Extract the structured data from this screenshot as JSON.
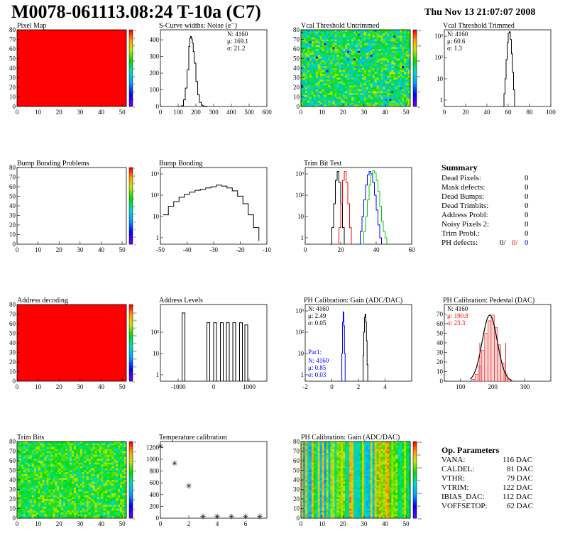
{
  "header": {
    "title": "M0078-061113.08:24 T-10a (C7)",
    "date": "Thu Nov 13 21:07:07 2008"
  },
  "colors": {
    "red": "#ff0000",
    "blue": "#0000ff",
    "green": "#00cc00",
    "black": "#000000"
  },
  "summary": {
    "heading": "Summary",
    "rows": [
      {
        "label": "Dead Pixels:",
        "value": "0"
      },
      {
        "label": "Mask defects:",
        "value": "0"
      },
      {
        "label": "Dead Bumps:",
        "value": "0"
      },
      {
        "label": "Dead Trimbits:",
        "value": "0"
      },
      {
        "label": "Address Probl:",
        "value": "0"
      },
      {
        "label": "Noisy Pixels 2:",
        "value": "0"
      },
      {
        "label": "Trim Probl.:",
        "value": "0"
      }
    ],
    "ph_label": "PH defects:",
    "ph_values": [
      "0/",
      "0/",
      "0"
    ]
  },
  "op_params": {
    "heading": "Op. Parameters",
    "rows": [
      {
        "label": "VANA:",
        "value": "116 DAC"
      },
      {
        "label": "CALDEL:",
        "value": "81 DAC"
      },
      {
        "label": "VTHR:",
        "value": "79 DAC"
      },
      {
        "label": "VTRIM:",
        "value": "122 DAC"
      },
      {
        "label": "IBIAS_DAC:",
        "value": "112 DAC"
      },
      {
        "label": "VOFFSETOP:",
        "value": "62 DAC"
      }
    ]
  },
  "chart_data": [
    {
      "id": "pixel-map",
      "type": "heatmap",
      "title": "Pixel Map",
      "xlim": [
        0,
        52
      ],
      "ylim": [
        0,
        80
      ],
      "xticks": [
        0,
        10,
        20,
        30,
        40,
        50
      ],
      "yticks": [
        0,
        10,
        20,
        30,
        40,
        50,
        60,
        70,
        80
      ],
      "fill": "uniform-red",
      "zticks": [
        "10",
        "9",
        "8",
        "7",
        "6",
        "5",
        "4",
        "3",
        "2",
        "1",
        "0"
      ]
    },
    {
      "id": "scurve-widths",
      "type": "line",
      "title": "S-Curve widths: Noise (e⁻)",
      "xlim": [
        0,
        600
      ],
      "ylim": [
        0,
        460
      ],
      "xticks": [
        0,
        100,
        200,
        300,
        400,
        500,
        600
      ],
      "yticks": [
        0,
        100,
        200,
        300,
        400
      ],
      "stats": [
        "N: 4160",
        "μ: 169.1",
        "σ: 21.2"
      ],
      "x": [
        100,
        120,
        130,
        140,
        150,
        160,
        165,
        170,
        175,
        180,
        185,
        190,
        200,
        210,
        220,
        230,
        240,
        260
      ],
      "y": [
        0,
        5,
        40,
        110,
        220,
        360,
        410,
        420,
        405,
        380,
        330,
        260,
        150,
        70,
        25,
        8,
        2,
        0
      ]
    },
    {
      "id": "vcal-untrimmed",
      "type": "heatmap",
      "title": "Vcal Threshold Untrimmed",
      "xlim": [
        0,
        52
      ],
      "ylim": [
        0,
        80
      ],
      "xticks": [
        0,
        10,
        20,
        30,
        40,
        50
      ],
      "yticks": [
        0,
        10,
        20,
        30,
        40,
        50,
        60,
        70,
        80
      ],
      "fill": "noise",
      "zticks": [
        "110",
        "100",
        "90",
        "80",
        "70",
        "60"
      ]
    },
    {
      "id": "vcal-trimmed",
      "type": "line",
      "title": "Vcal Threshold Trimmed",
      "xlim": [
        0,
        100
      ],
      "ylim": [
        0.5,
        2000
      ],
      "log_y": true,
      "xticks": [
        0,
        20,
        40,
        60,
        80,
        100
      ],
      "yticks": [
        1,
        10,
        100,
        1000
      ],
      "stats": [
        "N: 4160",
        "μ: 60.6",
        "σ:  1.3"
      ],
      "x": [
        55,
        56,
        57,
        58,
        59,
        60,
        61,
        62,
        63,
        64,
        65,
        66
      ],
      "y": [
        0.5,
        2,
        10,
        80,
        500,
        1400,
        1600,
        700,
        150,
        20,
        3,
        0.5
      ]
    },
    {
      "id": "bump-bonding-problems",
      "type": "heatmap",
      "title": "Bump Bonding Problems",
      "xlim": [
        0,
        52
      ],
      "ylim": [
        0,
        80
      ],
      "xticks": [
        0,
        10,
        20,
        30,
        40,
        50
      ],
      "yticks": [
        0,
        10,
        20,
        30,
        40,
        50,
        60,
        70,
        80
      ],
      "fill": "empty",
      "zticks": [
        "5",
        "4",
        "3",
        "2",
        "1",
        "0",
        "-1",
        "-2",
        "-3",
        "-4",
        "-5"
      ]
    },
    {
      "id": "bump-bonding",
      "type": "line",
      "title": "Bump Bonding",
      "xlim": [
        -50,
        -10
      ],
      "ylim": [
        0.5,
        2000
      ],
      "log_y": true,
      "xticks": [
        -50,
        -40,
        -30,
        -20,
        -10
      ],
      "yticks": [
        1,
        10,
        100,
        1000
      ],
      "x": [
        -49,
        -47,
        -45,
        -43,
        -41,
        -39,
        -37,
        -35,
        -33,
        -31,
        -29,
        -27,
        -25,
        -23,
        -21,
        -19,
        -17,
        -15,
        -13
      ],
      "y": [
        12,
        30,
        50,
        80,
        110,
        140,
        170,
        190,
        220,
        250,
        300,
        270,
        220,
        160,
        90,
        40,
        12,
        3,
        0.7
      ]
    },
    {
      "id": "trim-bit-test",
      "type": "line",
      "title": "Trim Bit Test",
      "xlim": [
        0,
        60
      ],
      "ylim": [
        0.5,
        2000
      ],
      "log_y": true,
      "xticks": [
        0,
        20,
        40,
        60
      ],
      "yticks": [
        1,
        10,
        100,
        1000
      ],
      "series": [
        {
          "color": "#000000",
          "x": [
            14,
            15,
            16,
            17,
            18,
            19,
            20,
            21,
            22
          ],
          "y": [
            0.5,
            3,
            40,
            500,
            1300,
            400,
            40,
            3,
            0.5
          ]
        },
        {
          "color": "#ff0000",
          "x": [
            18,
            19,
            20,
            21,
            22,
            23,
            24,
            25,
            26
          ],
          "y": [
            0.5,
            3,
            40,
            500,
            1300,
            400,
            40,
            3,
            0.5
          ]
        },
        {
          "color": "#0000ff",
          "x": [
            30,
            31,
            32,
            33,
            34,
            35,
            36,
            37,
            38,
            39,
            40,
            41,
            42,
            43
          ],
          "y": [
            0.5,
            2,
            10,
            60,
            300,
            900,
            1300,
            1000,
            400,
            100,
            20,
            4,
            1,
            0.5
          ]
        },
        {
          "color": "#00cc00",
          "x": [
            32,
            33,
            34,
            35,
            36,
            37,
            38,
            39,
            40,
            41,
            42,
            43,
            44,
            45,
            46
          ],
          "y": [
            0.5,
            2,
            10,
            60,
            300,
            900,
            1400,
            1100,
            500,
            150,
            30,
            6,
            2,
            1,
            0.5
          ]
        }
      ]
    },
    {
      "id": "address-decoding",
      "type": "heatmap",
      "title": "Address decoding",
      "xlim": [
        0,
        52
      ],
      "ylim": [
        0,
        80
      ],
      "xticks": [
        0,
        10,
        20,
        30,
        40,
        50
      ],
      "yticks": [
        0,
        10,
        20,
        30,
        40,
        50,
        60,
        70,
        80
      ],
      "fill": "uniform-red",
      "zticks": [
        "1",
        "0.9",
        "0.8",
        "0.7",
        "0.6",
        "0.5",
        "0.4",
        "0.3",
        "0.2",
        "0.1",
        "0"
      ]
    },
    {
      "id": "address-levels",
      "type": "bar",
      "title": "Address Levels",
      "xlim": [
        -1500,
        1500
      ],
      "ylim": [
        0.5,
        2000
      ],
      "log_y": true,
      "xticks": [
        -1000,
        0,
        1000
      ],
      "yticks": [
        1,
        10,
        100
      ],
      "peaks": [
        -850,
        -150,
        40,
        230,
        400,
        580,
        770,
        920
      ],
      "peak_heights": [
        800,
        280,
        280,
        280,
        280,
        280,
        280,
        220
      ]
    },
    {
      "id": "ph-gain",
      "type": "line",
      "title": "PH Calibration: Gain (ADC/DAC)",
      "xlim": [
        -2,
        6
      ],
      "ylim": [
        0.5,
        2000
      ],
      "log_y": true,
      "xticks": [
        -2,
        0,
        2,
        4
      ],
      "yticks": [
        1,
        10,
        100,
        1000
      ],
      "stats": [
        "N: 4160",
        "μ: 2.49",
        "σ: 0.05"
      ],
      "stats2_title": "Par1:",
      "stats2": [
        "N: 4160",
        "μ: 0.85",
        "σ: 0.03"
      ],
      "series": [
        {
          "color": "#0000ff",
          "x": [
            0.7,
            0.75,
            0.8,
            0.85,
            0.9,
            0.95,
            1.0
          ],
          "y": [
            0.5,
            10,
            300,
            900,
            200,
            10,
            0.5
          ]
        },
        {
          "color": "#000000",
          "x": [
            2.3,
            2.35,
            2.4,
            2.45,
            2.5,
            2.55,
            2.6,
            2.65,
            2.7
          ],
          "y": [
            0.5,
            8,
            100,
            500,
            700,
            300,
            40,
            3,
            0.5
          ]
        }
      ]
    },
    {
      "id": "ph-pedestal",
      "type": "bar",
      "title": "PH Calibration: Pedestal (DAC)",
      "xlim": [
        50,
        380
      ],
      "ylim": [
        0,
        80
      ],
      "xticks": [
        100,
        200,
        300
      ],
      "yticks": [
        0,
        10,
        20,
        30,
        40,
        50,
        60,
        70
      ],
      "stats": [
        "N: 4160",
        "μ: 190.8",
        "σ: 23.3"
      ],
      "x": [
        140,
        150,
        160,
        170,
        180,
        190,
        200,
        210,
        220,
        230,
        240,
        250
      ],
      "values": [
        2,
        7,
        16,
        32,
        50,
        63,
        69,
        56,
        38,
        19,
        8,
        2
      ]
    },
    {
      "id": "trim-bits",
      "type": "heatmap",
      "title": "Trim Bits",
      "xlim": [
        0,
        52
      ],
      "ylim": [
        0,
        80
      ],
      "xticks": [
        0,
        10,
        20,
        30,
        40,
        50
      ],
      "yticks": [
        0,
        10,
        20,
        30,
        40,
        50,
        60,
        70,
        80
      ],
      "fill": "noise-green",
      "zticks": [
        "16",
        "14",
        "12",
        "10",
        "8",
        "6",
        "4",
        "2",
        "0"
      ]
    },
    {
      "id": "temperature-calibration",
      "type": "scatter",
      "title": "Temperature calibration",
      "xlim": [
        0,
        7.5
      ],
      "ylim": [
        0,
        1300
      ],
      "xticks": [
        0,
        2,
        4,
        6
      ],
      "yticks": [
        0,
        200,
        400,
        600,
        800,
        1000,
        1200
      ],
      "x": [
        0,
        1,
        2,
        3,
        4,
        5,
        6,
        7
      ],
      "y": [
        1220,
        930,
        550,
        30,
        30,
        30,
        30,
        30
      ]
    },
    {
      "id": "ph-gain-map",
      "type": "heatmap",
      "title": "PH Calibration: Gain (ADC/DAC)",
      "xlim": [
        0,
        52
      ],
      "ylim": [
        0,
        80
      ],
      "xticks": [
        0,
        10,
        20,
        30,
        40,
        50
      ],
      "yticks": [
        0,
        10,
        20,
        30,
        40,
        50,
        60,
        70,
        80
      ],
      "fill": "columns",
      "zticks": [
        "2.65",
        "2.6",
        "2.55",
        "2.5",
        "2.45",
        "2.4",
        "2.35"
      ]
    }
  ]
}
